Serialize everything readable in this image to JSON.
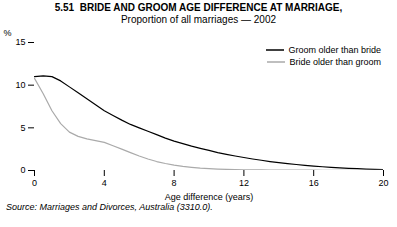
{
  "chart_data": {
    "type": "line",
    "title": "5.51  BRIDE AND GROOM AGE DIFFERENCE AT MARRIAGE,",
    "subtitle": "Proportion of all marriages — 2002",
    "xlabel": "Age difference (years)",
    "ylabel": "%",
    "source": "Source: Marriages and Divorces, Australia (3310.0).",
    "xlim": [
      0,
      20
    ],
    "ylim": [
      0,
      15
    ],
    "xticks": [
      0,
      4,
      8,
      12,
      16,
      20
    ],
    "yticks": [
      0,
      5,
      10,
      15
    ],
    "grid": false,
    "legend": "upper right",
    "x": [
      0,
      0.5,
      1,
      1.5,
      2,
      2.5,
      3,
      3.5,
      4,
      4.5,
      5,
      5.5,
      6,
      6.5,
      7,
      7.5,
      8,
      8.5,
      9,
      9.5,
      10,
      10.5,
      11,
      11.5,
      12,
      12.5,
      13,
      13.5,
      14,
      14.5,
      15,
      15.5,
      16,
      16.5,
      17,
      17.5,
      18,
      18.5,
      19,
      19.5,
      20
    ],
    "series": [
      {
        "name": "Groom older than bride",
        "color": "#000000",
        "values": [
          11.0,
          11.1,
          11.0,
          10.5,
          9.8,
          9.1,
          8.4,
          7.7,
          7.0,
          6.45,
          5.9,
          5.4,
          5.0,
          4.6,
          4.2,
          3.8,
          3.45,
          3.15,
          2.85,
          2.6,
          2.35,
          2.1,
          1.9,
          1.7,
          1.52,
          1.35,
          1.2,
          1.05,
          0.92,
          0.8,
          0.7,
          0.6,
          0.52,
          0.44,
          0.37,
          0.31,
          0.26,
          0.21,
          0.17,
          0.13,
          0.1
        ]
      },
      {
        "name": "Bride older than groom",
        "color": "#aaaaaa",
        "values": [
          10.8,
          9.0,
          7.0,
          5.5,
          4.5,
          4.0,
          3.7,
          3.5,
          3.3,
          2.9,
          2.5,
          2.1,
          1.7,
          1.35,
          1.05,
          0.82,
          0.62,
          0.48,
          0.37,
          0.28,
          0.22,
          0.17,
          0.13,
          0.11,
          0.09,
          0.08,
          0.07,
          0.06,
          0.055,
          0.05,
          0.045,
          0.04,
          0.035,
          0.03,
          0.025,
          0.02,
          0.018,
          0.015,
          0.012,
          0.01,
          0.008
        ]
      }
    ]
  }
}
